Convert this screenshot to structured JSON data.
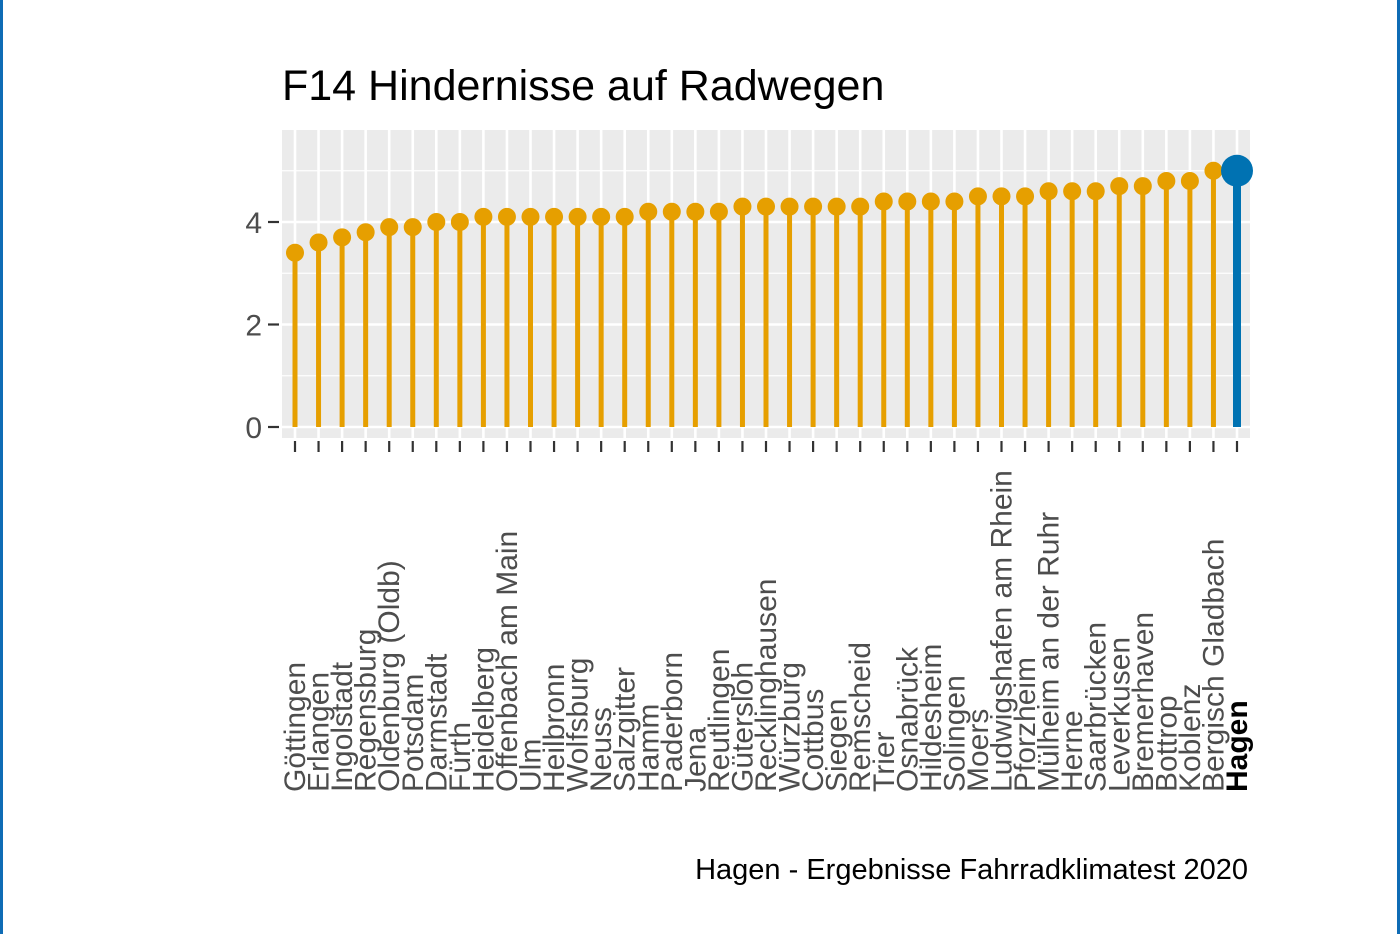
{
  "colors": {
    "lollipop": "#E69F00",
    "highlight": "#0072B2",
    "panel": "#EBEBEB",
    "grid": "#FFFFFF",
    "frame_border": "#0F6CB5"
  },
  "caption": "Hagen - Ergebnisse Fahrradklimatest 2020",
  "chart_data": {
    "type": "lollipop",
    "title": "F14 Hindernisse auf Radwegen",
    "xlabel": "",
    "ylabel": "",
    "ylim": [
      0,
      5.6
    ],
    "y_ticks": [
      0,
      2,
      4
    ],
    "grid": true,
    "highlight_category": "Hagen",
    "categories": [
      "Göttingen",
      "Erlangen",
      "Ingolstadt",
      "Regensburg",
      "Oldenburg (Oldb)",
      "Potsdam",
      "Darmstadt",
      "Fürth",
      "Heidelberg",
      "Offenbach am Main",
      "Ulm",
      "Heilbronn",
      "Wolfsburg",
      "Neuss",
      "Salzgitter",
      "Hamm",
      "Paderborn",
      "Jena",
      "Reutlingen",
      "Gütersloh",
      "Recklinghausen",
      "Würzburg",
      "Cottbus",
      "Siegen",
      "Remscheid",
      "Trier",
      "Osnabrück",
      "Hildesheim",
      "Solingen",
      "Moers",
      "Ludwigshafen am Rhein",
      "Pforzheim",
      "Mülheim an der Ruhr",
      "Herne",
      "Saarbrücken",
      "Leverkusen",
      "Bremerhaven",
      "Bottrop",
      "Koblenz",
      "Bergisch Gladbach",
      "Hagen"
    ],
    "values": [
      3.4,
      3.6,
      3.7,
      3.8,
      3.9,
      3.9,
      4.0,
      4.0,
      4.1,
      4.1,
      4.1,
      4.1,
      4.1,
      4.1,
      4.1,
      4.2,
      4.2,
      4.2,
      4.2,
      4.3,
      4.3,
      4.3,
      4.3,
      4.3,
      4.3,
      4.4,
      4.4,
      4.4,
      4.4,
      4.5,
      4.5,
      4.5,
      4.6,
      4.6,
      4.6,
      4.7,
      4.7,
      4.8,
      4.8,
      5.0,
      5.0
    ]
  }
}
